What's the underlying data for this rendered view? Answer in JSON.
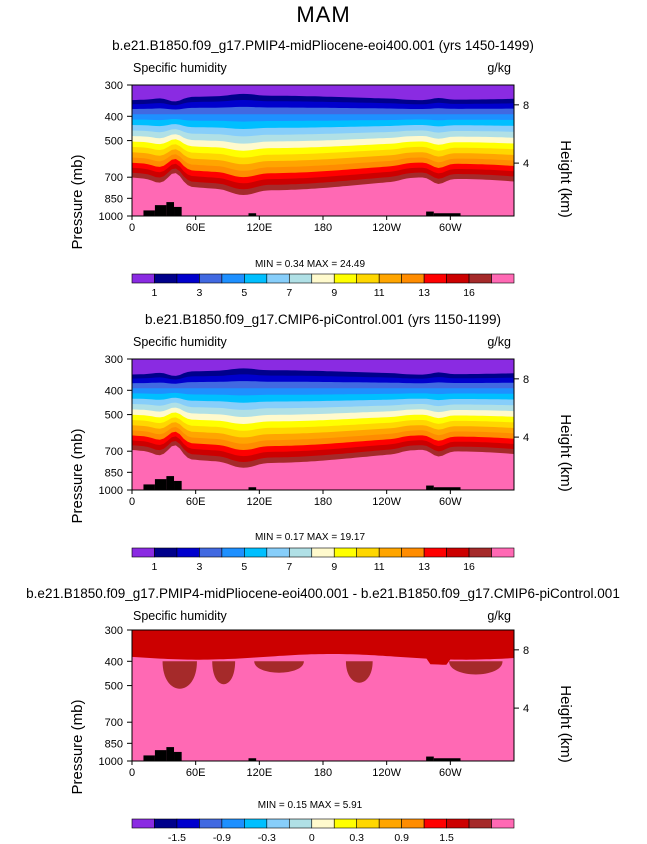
{
  "figure": {
    "title": "MAM"
  },
  "panels": [
    {
      "title": "b.e21.B1850.f09_g17.PMIP4-midPliocene-eoi400.001 (yrs 1450-1499)",
      "variable": "Specific humidity",
      "units": "g/kg",
      "ylabel": "Pressure (mb)",
      "ylabel2": "Height (km)",
      "yticks": [
        "300",
        "400",
        "500",
        "700",
        "850",
        "1000"
      ],
      "yticks2": [
        "8",
        "4"
      ],
      "xticks": [
        "0",
        "60E",
        "120E",
        "180",
        "120W",
        "60W"
      ],
      "minmax": "MIN =    0.34   MAX =   24.49",
      "colorbar_labels": [
        "1",
        "3",
        "5",
        "7",
        "9",
        "11",
        "13",
        "16"
      ]
    },
    {
      "title": "b.e21.B1850.f09_g17.CMIP6-piControl.001 (yrs 1150-1199)",
      "variable": "Specific humidity",
      "units": "g/kg",
      "ylabel": "Pressure (mb)",
      "ylabel2": "Height (km)",
      "yticks": [
        "300",
        "400",
        "500",
        "700",
        "850",
        "1000"
      ],
      "yticks2": [
        "8",
        "4"
      ],
      "xticks": [
        "0",
        "60E",
        "120E",
        "180",
        "120W",
        "60W"
      ],
      "minmax": "MIN =    0.17   MAX =   19.17",
      "colorbar_labels": [
        "1",
        "3",
        "5",
        "7",
        "9",
        "11",
        "13",
        "16"
      ]
    },
    {
      "title": "b.e21.B1850.f09_g17.PMIP4-midPliocene-eoi400.001 - b.e21.B1850.f09_g17.CMIP6-piControl.001",
      "variable": "Specific humidity",
      "units": "g/kg",
      "ylabel": "Pressure (mb)",
      "ylabel2": "Height (km)",
      "yticks": [
        "300",
        "400",
        "500",
        "700",
        "850",
        "1000"
      ],
      "yticks2": [
        "8",
        "4"
      ],
      "xticks": [
        "0",
        "60E",
        "120E",
        "180",
        "120W",
        "60W"
      ],
      "minmax": "MIN =    0.15   MAX =    5.91",
      "colorbar_labels": [
        "-1.5",
        "-0.9",
        "-0.3",
        "0",
        "0.3",
        "0.9",
        "1.5"
      ]
    }
  ],
  "chart_data": [
    {
      "type": "heatmap",
      "title": "b.e21.B1850.f09_g17.PMIP4-midPliocene-eoi400.001 (yrs 1450-1499)",
      "subtitle": "Specific humidity",
      "units": "g/kg",
      "xlabel": "",
      "ylabel": "Pressure (mb)",
      "x_ticks": [
        "0",
        "60E",
        "120E",
        "180",
        "120W",
        "60W"
      ],
      "y_ticks": [
        300,
        400,
        500,
        700,
        850,
        1000
      ],
      "y2_label": "Height (km)",
      "y2_ticks": [
        8,
        4
      ],
      "y_scale": "log",
      "ylim": [
        1000,
        300
      ],
      "colorbar_levels": [
        1,
        2,
        3,
        4,
        5,
        6,
        7,
        8,
        9,
        10,
        11,
        12,
        13,
        14,
        16
      ],
      "colorbar_labels": [
        "1",
        "3",
        "5",
        "7",
        "9",
        "11",
        "13",
        "16"
      ],
      "colors": [
        "#8a2be2",
        "#00008b",
        "#0000cd",
        "#4169e1",
        "#1e90ff",
        "#00bfff",
        "#87cefa",
        "#b0e0e6",
        "#fffacd",
        "#ffff00",
        "#ffd700",
        "#ffa500",
        "#ff8c00",
        "#ff0000",
        "#cc0000",
        "#a52a2a",
        "#ff69b4"
      ],
      "min": 0.34,
      "max": 24.49
    },
    {
      "type": "heatmap",
      "title": "b.e21.B1850.f09_g17.CMIP6-piControl.001 (yrs 1150-1199)",
      "subtitle": "Specific humidity",
      "units": "g/kg",
      "xlabel": "",
      "ylabel": "Pressure (mb)",
      "x_ticks": [
        "0",
        "60E",
        "120E",
        "180",
        "120W",
        "60W"
      ],
      "y_ticks": [
        300,
        400,
        500,
        700,
        850,
        1000
      ],
      "y2_label": "Height (km)",
      "y2_ticks": [
        8,
        4
      ],
      "y_scale": "log",
      "ylim": [
        1000,
        300
      ],
      "colorbar_levels": [
        1,
        2,
        3,
        4,
        5,
        6,
        7,
        8,
        9,
        10,
        11,
        12,
        13,
        14,
        16
      ],
      "colorbar_labels": [
        "1",
        "3",
        "5",
        "7",
        "9",
        "11",
        "13",
        "16"
      ],
      "colors": [
        "#8a2be2",
        "#00008b",
        "#0000cd",
        "#4169e1",
        "#1e90ff",
        "#00bfff",
        "#87cefa",
        "#b0e0e6",
        "#fffacd",
        "#ffff00",
        "#ffd700",
        "#ffa500",
        "#ff8c00",
        "#ff0000",
        "#cc0000",
        "#a52a2a",
        "#ff69b4"
      ],
      "min": 0.17,
      "max": 19.17
    },
    {
      "type": "heatmap",
      "title": "b.e21.B1850.f09_g17.PMIP4-midPliocene-eoi400.001 - b.e21.B1850.f09_g17.CMIP6-piControl.001",
      "subtitle": "Specific humidity",
      "units": "g/kg",
      "xlabel": "",
      "ylabel": "Pressure (mb)",
      "x_ticks": [
        "0",
        "60E",
        "120E",
        "180",
        "120W",
        "60W"
      ],
      "y_ticks": [
        300,
        400,
        500,
        700,
        850,
        1000
      ],
      "y2_label": "Height (km)",
      "y2_ticks": [
        8,
        4
      ],
      "y_scale": "log",
      "ylim": [
        1000,
        300
      ],
      "colorbar_labels": [
        "-1.5",
        "-0.9",
        "-0.3",
        "0",
        "0.3",
        "0.9",
        "1.5"
      ],
      "colors": [
        "#8a2be2",
        "#00008b",
        "#0000cd",
        "#4169e1",
        "#1e90ff",
        "#00bfff",
        "#87cefa",
        "#b0e0e6",
        "#fffacd",
        "#ffff00",
        "#ffd700",
        "#ffa500",
        "#ff8c00",
        "#ff0000",
        "#cc0000",
        "#a52a2a",
        "#ff69b4"
      ],
      "min": 0.15,
      "max": 5.91
    }
  ]
}
